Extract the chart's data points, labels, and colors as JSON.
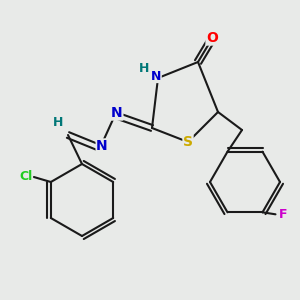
{
  "bg_color": "#e8eae8",
  "bond_color": "#1a1a1a",
  "bond_width": 1.5,
  "atom_colors": {
    "O": "#ff0000",
    "N": "#0000cc",
    "S": "#ccaa00",
    "F": "#cc00cc",
    "Cl": "#22cc22",
    "H": "#007777",
    "C": "#1a1a1a"
  },
  "font_size": 9,
  "fig_size": [
    3.0,
    3.0
  ],
  "dpi": 100
}
